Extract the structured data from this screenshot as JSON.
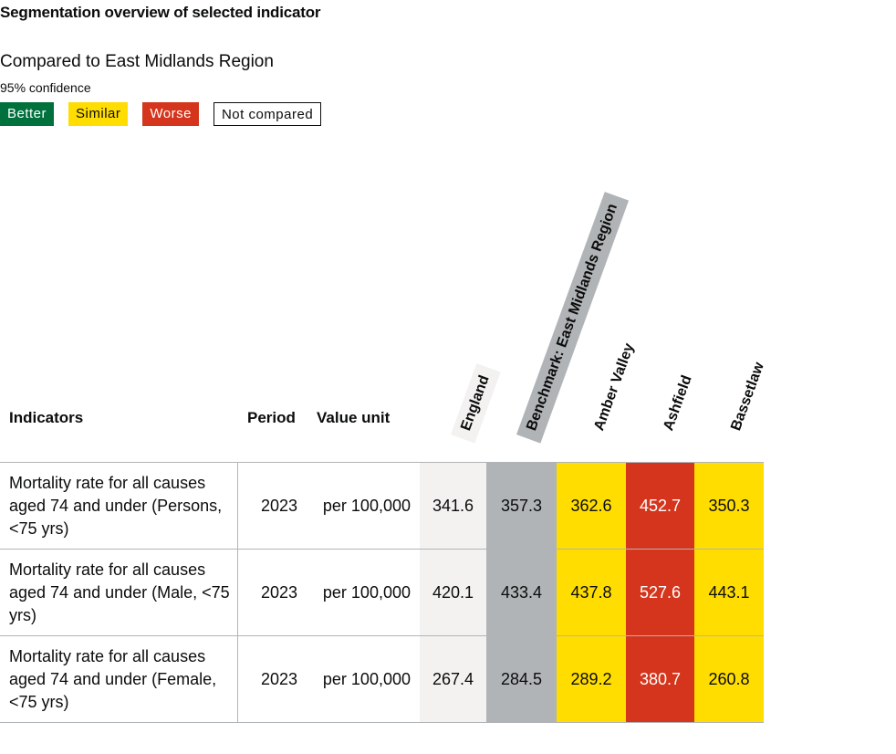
{
  "title": "Segmentation overview of selected indicator",
  "compared_to": "Compared to East Midlands Region",
  "confidence": "95% confidence",
  "legend": {
    "better": "Better",
    "similar": "Similar",
    "worse": "Worse",
    "not_compared": "Not compared"
  },
  "colors": {
    "better": "#00703c",
    "similar": "#ffdd00",
    "worse": "#d4351c",
    "benchmark": "#b1b4b6",
    "england": "#f3f2f1"
  },
  "columns": {
    "indicators": "Indicators",
    "period": "Period",
    "value_unit": "Value unit",
    "areas": [
      "England",
      "Benchmark: East Midlands Region",
      "Amber Valley",
      "Ashfield",
      "Bassetlaw"
    ]
  },
  "rows": [
    {
      "indicator": "Mortality rate for all causes aged 74 and under (Persons, <75 yrs)",
      "period": "2023",
      "unit": "per 100,000",
      "values": [
        "341.6",
        "357.3",
        "362.6",
        "452.7",
        "350.3"
      ]
    },
    {
      "indicator": "Mortality rate for all causes aged 74 and under (Male, <75 yrs)",
      "period": "2023",
      "unit": "per 100,000",
      "values": [
        "420.1",
        "433.4",
        "437.8",
        "527.6",
        "443.1"
      ]
    },
    {
      "indicator": "Mortality rate for all causes aged 74 and under (Female, <75 yrs)",
      "period": "2023",
      "unit": "per 100,000",
      "values": [
        "267.4",
        "284.5",
        "289.2",
        "380.7",
        "260.8"
      ]
    }
  ]
}
